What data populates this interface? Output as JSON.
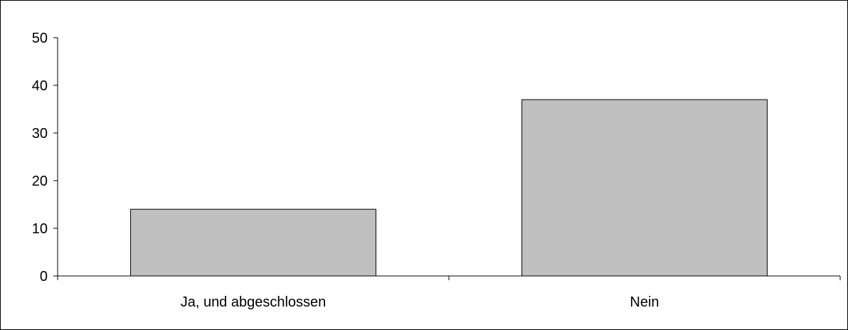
{
  "chart_data": {
    "type": "bar",
    "categories": [
      "Ja, und abgeschlossen",
      "Nein"
    ],
    "values": [
      14,
      37
    ],
    "title": "",
    "xlabel": "",
    "ylabel": "",
    "ylim": [
      0,
      50
    ],
    "yticks": [
      0,
      10,
      20,
      30,
      40,
      50
    ],
    "grid": false,
    "legend": "none",
    "bar_color": "#c0c0c0",
    "bar_edge_color": "#000000",
    "axis_color": "#000000"
  }
}
